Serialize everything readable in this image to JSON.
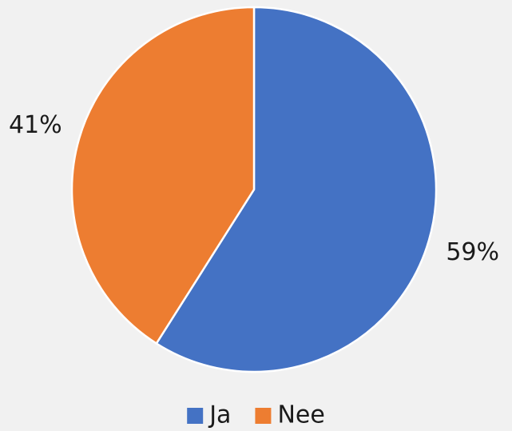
{
  "chart_data": {
    "type": "pie",
    "categories": [
      "Ja",
      "Nee"
    ],
    "values": [
      59,
      41
    ],
    "value_labels": [
      "59%",
      "41%"
    ],
    "colors": [
      "#4472c4",
      "#ed7d31"
    ],
    "legend": "bottom"
  }
}
